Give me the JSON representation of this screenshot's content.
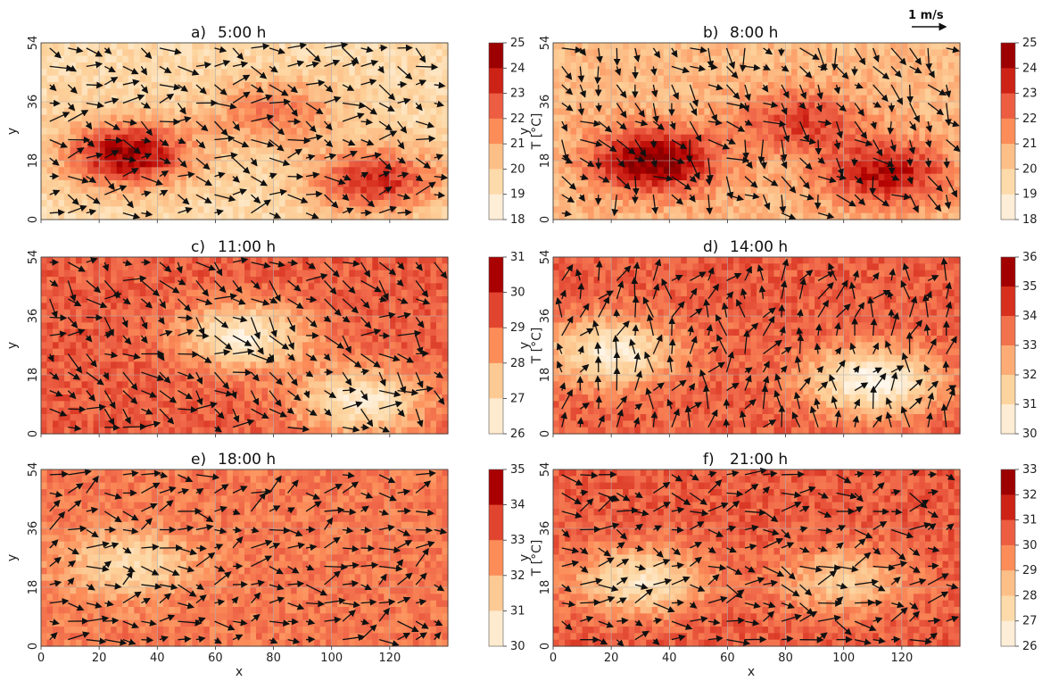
{
  "chart_data": {
    "type": "heatmap",
    "scale_arrow": {
      "label": "1 m/s"
    },
    "x_axis": {
      "label": "x",
      "range": [
        0,
        140
      ],
      "ticks": [
        0,
        20,
        40,
        60,
        80,
        100,
        120
      ]
    },
    "y_axis": {
      "label": "y",
      "range": [
        0,
        54
      ],
      "ticks": [
        0,
        18,
        36,
        54
      ]
    },
    "colormap": "OrRd",
    "colorbar_label": "T [°C]",
    "grid": true,
    "panels": [
      {
        "id": "a",
        "letter": "a)",
        "time": "5:00 h",
        "color_range": [
          18,
          25
        ],
        "color_ticks": [
          "25",
          "24",
          "23",
          "22",
          "21",
          "20",
          "19",
          "18"
        ],
        "background_value": 19.5,
        "warm_features": [
          {
            "x": 30,
            "y": 20,
            "value": 24.5
          },
          {
            "x": 80,
            "y": 33,
            "value": 22
          },
          {
            "x": 115,
            "y": 12,
            "value": 23.5
          }
        ],
        "wind": {
          "mean_u": 0.5,
          "mean_v": -0.1
        }
      },
      {
        "id": "b",
        "letter": "b)",
        "time": "8:00 h",
        "color_range": [
          18,
          25
        ],
        "color_ticks": [
          "25",
          "24",
          "23",
          "22",
          "21",
          "20",
          "19",
          "18"
        ],
        "background_value": 20.5,
        "warm_features": [
          {
            "x": 35,
            "y": 18,
            "value": 25
          },
          {
            "x": 85,
            "y": 30,
            "value": 23
          },
          {
            "x": 115,
            "y": 14,
            "value": 24
          }
        ],
        "wind": {
          "mean_u": 0.4,
          "mean_v": -0.5
        }
      },
      {
        "id": "c",
        "letter": "c)",
        "time": "11:00 h",
        "color_range": [
          26,
          31
        ],
        "color_ticks": [
          "31",
          "30",
          "29",
          "28",
          "27",
          "26"
        ],
        "background_value": 29.2,
        "cool_features": [
          {
            "x": 70,
            "y": 30,
            "value": 26.5
          },
          {
            "x": 110,
            "y": 10,
            "value": 26.5
          }
        ],
        "wind": {
          "mean_u": 0.4,
          "mean_v": -0.2
        }
      },
      {
        "id": "d",
        "letter": "d)",
        "time": "14:00 h",
        "color_range": [
          30,
          36
        ],
        "color_ticks": [
          "36",
          "35",
          "34",
          "33",
          "32",
          "31",
          "30"
        ],
        "background_value": 33.8,
        "cool_features": [
          {
            "x": 20,
            "y": 25,
            "value": 30.5
          },
          {
            "x": 110,
            "y": 16,
            "value": 30
          }
        ],
        "wind": {
          "mean_u": 0.1,
          "mean_v": 0.3
        }
      },
      {
        "id": "e",
        "letter": "e)",
        "time": "18:00 h",
        "color_range": [
          30,
          35
        ],
        "color_ticks": [
          "35",
          "34",
          "33",
          "32",
          "31",
          "30"
        ],
        "background_value": 32.8,
        "cool_features": [
          {
            "x": 30,
            "y": 25,
            "value": 31
          }
        ],
        "wind": {
          "mean_u": 0.5,
          "mean_v": 0.1
        }
      },
      {
        "id": "f",
        "letter": "f)",
        "time": "21:00 h",
        "color_range": [
          26,
          33
        ],
        "color_ticks": [
          "33",
          "32",
          "31",
          "30",
          "29",
          "28",
          "27",
          "26"
        ],
        "background_value": 30.5,
        "cool_features": [
          {
            "x": 30,
            "y": 20,
            "value": 27
          },
          {
            "x": 100,
            "y": 20,
            "value": 28
          }
        ],
        "wind": {
          "mean_u": 0.4,
          "mean_v": 0.0
        }
      }
    ]
  }
}
